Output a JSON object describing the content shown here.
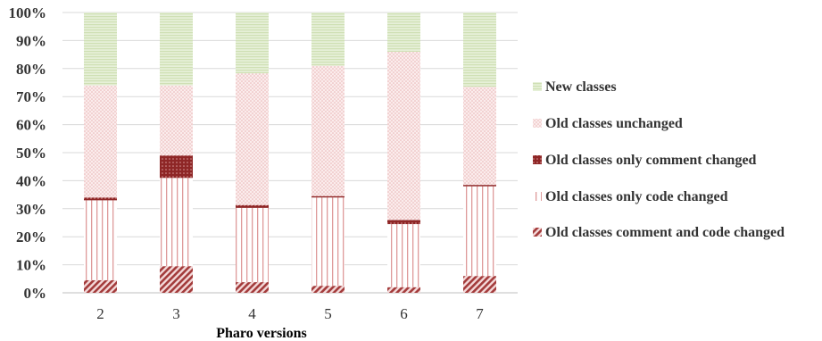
{
  "chart_data": {
    "type": "bar",
    "stacked": true,
    "percent_stacked": true,
    "xlabel": "Pharo versions",
    "ylabel": "",
    "ylim": [
      0,
      100
    ],
    "y_ticks": [
      "0%",
      "10%",
      "20%",
      "30%",
      "40%",
      "50%",
      "60%",
      "70%",
      "80%",
      "90%",
      "100%"
    ],
    "categories": [
      "2",
      "3",
      "4",
      "5",
      "6",
      "7"
    ],
    "legend_position": "right",
    "series": [
      {
        "name": "Old classes comment and code changed",
        "values": [
          4.5,
          9.5,
          3.8,
          2.5,
          2.0,
          6.0
        ],
        "color": "#a33b3b",
        "pattern": "diagonal"
      },
      {
        "name": "Old classes only code changed",
        "values": [
          28.5,
          31.5,
          26.5,
          31.5,
          22.5,
          32.0
        ],
        "color": "#e3a3a3",
        "pattern": "vertical"
      },
      {
        "name": "Old classes only comment changed",
        "values": [
          1.0,
          8.0,
          1.0,
          0.5,
          1.5,
          0.5
        ],
        "color": "#9b2e2e",
        "pattern": "dots-dark"
      },
      {
        "name": "Old classes unchanged",
        "values": [
          40.0,
          25.0,
          47.0,
          46.5,
          60.0,
          35.0
        ],
        "color": "#f0c8c8",
        "pattern": "dots-light"
      },
      {
        "name": "New classes",
        "values": [
          26.0,
          26.0,
          21.7,
          19.0,
          14.0,
          26.5
        ],
        "color": "#dbe8c6",
        "pattern": "horizontal"
      }
    ]
  }
}
